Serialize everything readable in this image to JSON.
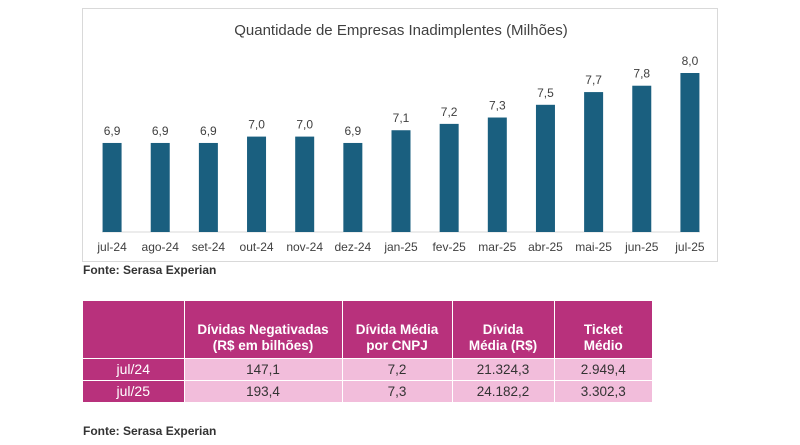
{
  "chart_data": {
    "type": "bar",
    "title": "Quantidade de Empresas Inadimplentes (Milhões)",
    "categories": [
      "jul-24",
      "ago-24",
      "set-24",
      "out-24",
      "nov-24",
      "dez-24",
      "jan-25",
      "fev-25",
      "mar-25",
      "abr-25",
      "mai-25",
      "jun-25",
      "jul-25"
    ],
    "values": [
      6.9,
      6.9,
      6.9,
      7.0,
      7.0,
      6.9,
      7.1,
      7.2,
      7.3,
      7.5,
      7.7,
      7.8,
      8.0
    ],
    "data_labels": [
      "6,9",
      "6,9",
      "6,9",
      "7,0",
      "7,0",
      "6,9",
      "7,1",
      "7,2",
      "7,3",
      "7,5",
      "7,7",
      "7,8",
      "8,0"
    ],
    "xlabel": "",
    "ylabel": "",
    "ylim": [
      5.5,
      8.0
    ],
    "grid": false,
    "bar_color": "#1a5f7f"
  },
  "source_chart": "Fonte: Serasa Experian",
  "table": {
    "headers": [
      "",
      [
        "Dívidas Negativadas",
        "(R$ em bilhões)"
      ],
      [
        "Dívida Média",
        "por CNPJ"
      ],
      [
        "Dívida",
        "Média (R$)"
      ],
      [
        "Ticket",
        "Médio"
      ]
    ],
    "rows": [
      {
        "label": "jul/24",
        "values": [
          "147,1",
          "7,2",
          "21.324,3",
          "2.949,4"
        ]
      },
      {
        "label": "jul/25",
        "values": [
          "193,4",
          "7,3",
          "24.182,2",
          "3.302,3"
        ]
      }
    ],
    "header_color": "#b8317c",
    "cell_color": "#f2bddb"
  },
  "source_table": "Fonte: Serasa Experian"
}
